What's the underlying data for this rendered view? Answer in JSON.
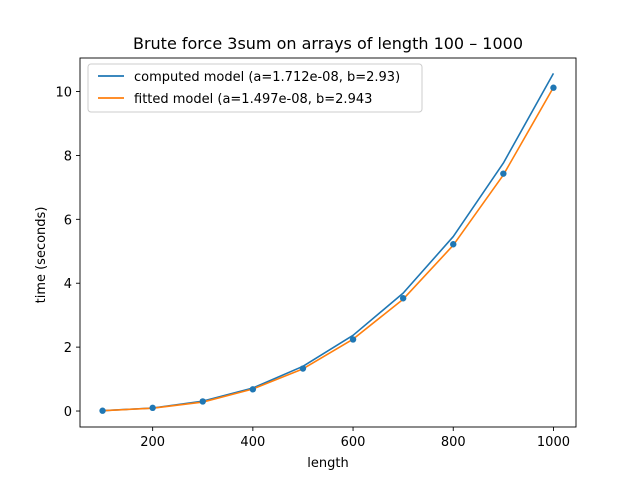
{
  "chart_data": {
    "type": "line",
    "title": "Brute force 3sum on arrays of length 100 – 1000",
    "xlabel": "length",
    "ylabel": "time (seconds)",
    "xlim": [
      55,
      1045
    ],
    "ylim": [
      -0.5,
      11.05
    ],
    "xticks": [
      200,
      400,
      600,
      800,
      1000
    ],
    "yticks": [
      0,
      2,
      4,
      6,
      8,
      10
    ],
    "grid": false,
    "legend_position": "top-left",
    "x": [
      100,
      200,
      300,
      400,
      500,
      600,
      700,
      800,
      900,
      1000
    ],
    "observed": {
      "color": "#1f77b4",
      "values": [
        0.01,
        0.1,
        0.3,
        0.68,
        1.33,
        2.24,
        3.53,
        5.22,
        7.43,
        10.12
      ]
    },
    "series": [
      {
        "name": "computed model (a=1.712e-08, b=2.93)",
        "color": "#1f77b4",
        "values": [
          0.012,
          0.093,
          0.31,
          0.72,
          1.4,
          2.37,
          3.69,
          5.46,
          7.76,
          10.57
        ]
      },
      {
        "name": "fitted model (a=1.497e-08, b=2.943",
        "color": "#ff7f0e",
        "values": [
          0.01,
          0.09,
          0.28,
          0.69,
          1.32,
          2.25,
          3.5,
          5.19,
          7.39,
          10.13
        ]
      }
    ]
  }
}
